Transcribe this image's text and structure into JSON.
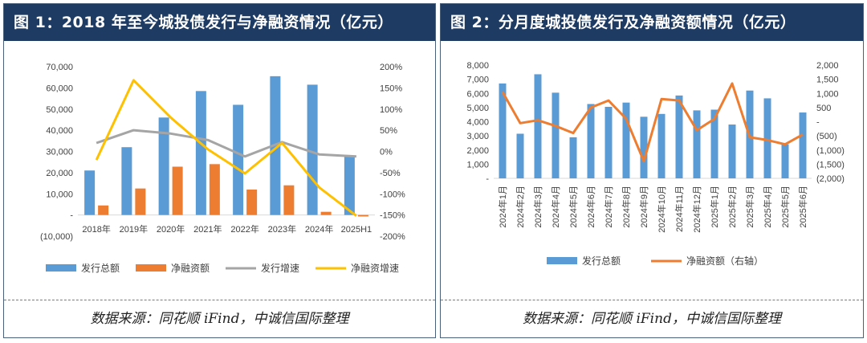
{
  "panel1": {
    "title": "图 1：2018 年至今城投债发行与净融资情况（亿元）",
    "source": "数据来源：同花顺 iFind，中诚信国际整理"
  },
  "panel2": {
    "title": "图 2：分月度城投债发行及净融资额情况（亿元）",
    "source": "数据来源：同花顺 iFind，中诚信国际整理"
  },
  "colors": {
    "header_bg": "#1e3b63",
    "blue": "#5b9bd5",
    "orange": "#ed7d31",
    "gray": "#a5a5a5",
    "yellow": "#ffc000"
  },
  "chart_data": [
    {
      "type": "bar",
      "categories": [
        "2018年",
        "2019年",
        "2020年",
        "2021年",
        "2022年",
        "2023年",
        "2024年",
        "2025H1"
      ],
      "series": [
        {
          "name": "发行总额",
          "kind": "bar",
          "axis": "left",
          "color": "#5b9bd5",
          "values": [
            21000,
            32000,
            46000,
            58500,
            52000,
            65500,
            61500,
            27500
          ]
        },
        {
          "name": "净融资额",
          "kind": "bar",
          "axis": "left",
          "color": "#ed7d31",
          "values": [
            4500,
            12500,
            22800,
            24000,
            12000,
            14000,
            1500,
            -700
          ]
        },
        {
          "name": "发行增速",
          "kind": "line",
          "axis": "right",
          "color": "#a5a5a5",
          "values": [
            20,
            50,
            42,
            27,
            -12,
            22,
            -7,
            -12
          ]
        },
        {
          "name": "净融资增速",
          "kind": "line",
          "axis": "right",
          "color": "#ffc000",
          "values": [
            -20,
            168,
            80,
            5,
            -52,
            20,
            -85,
            -152
          ]
        }
      ],
      "y_left": {
        "min": -10000,
        "max": 70000,
        "step": 10000,
        "ticks": [
          "(10,000)",
          "-",
          "10,000",
          "20,000",
          "30,000",
          "40,000",
          "50,000",
          "60,000",
          "70,000"
        ]
      },
      "y_right": {
        "min": -200,
        "max": 200,
        "step": 50,
        "ticks": [
          "-200%",
          "-150%",
          "-100%",
          "-50%",
          "0%",
          "50%",
          "100%",
          "150%",
          "200%"
        ]
      },
      "legend_position": "bottom",
      "grid": false
    },
    {
      "type": "bar",
      "categories": [
        "2024年1月",
        "2024年2月",
        "2024年3月",
        "2024年4月",
        "2024年5月",
        "2024年6月",
        "2024年7月",
        "2024年8月",
        "2024年9月",
        "2024年10月",
        "2024年11月",
        "2024年12月",
        "2025年1月",
        "2025年2月",
        "2025年3月",
        "2025年4月",
        "2025年5月",
        "2025年6月"
      ],
      "series": [
        {
          "name": "发行总额",
          "kind": "bar",
          "axis": "left",
          "color": "#5b9bd5",
          "values": [
            6700,
            3150,
            7350,
            6050,
            2900,
            5250,
            5050,
            5350,
            4350,
            4550,
            5850,
            4800,
            4850,
            3800,
            6200,
            5650,
            2400,
            4650
          ]
        },
        {
          "name": "净融资额（右轴）",
          "kind": "line",
          "axis": "right",
          "color": "#ed7d31",
          "values": [
            1050,
            -50,
            50,
            -150,
            -400,
            500,
            750,
            100,
            -1400,
            800,
            750,
            -300,
            100,
            1350,
            -550,
            -650,
            -800,
            -450
          ]
        }
      ],
      "y_left": {
        "min": 0,
        "max": 8000,
        "step": 1000,
        "ticks": [
          "-",
          "1,000",
          "2,000",
          "3,000",
          "4,000",
          "5,000",
          "6,000",
          "7,000",
          "8,000"
        ]
      },
      "y_right": {
        "min": -2000,
        "max": 2000,
        "step": 500,
        "ticks": [
          "(2,000)",
          "(1,500)",
          "(1,000)",
          "(500)",
          "-",
          "500",
          "1,000",
          "1,500",
          "2,000"
        ]
      },
      "legend_position": "bottom",
      "grid": false
    }
  ]
}
